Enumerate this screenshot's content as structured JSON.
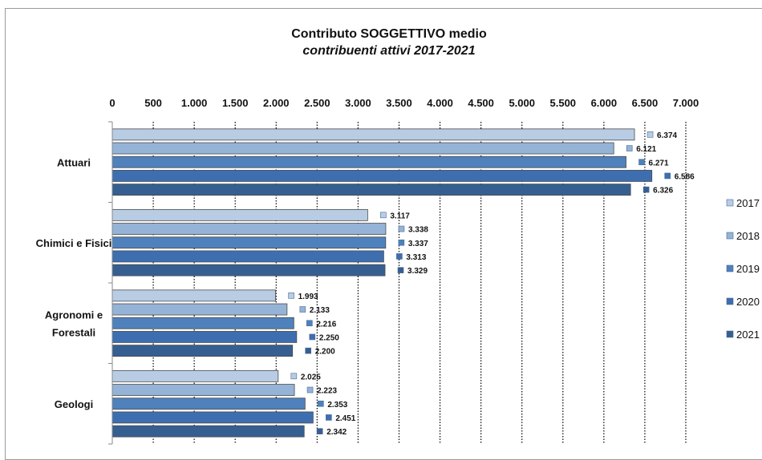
{
  "chart_data": {
    "type": "bar",
    "orientation": "horizontal",
    "title": "Contributo SOGGETTIVO medio",
    "subtitle": "contribuenti attivi 2017-2021",
    "categories": [
      "Attuari",
      "Chimici e Fisici",
      "Agronomi e\nForestali",
      "Geologi"
    ],
    "series": [
      {
        "name": "2017",
        "color": "#b8cce4",
        "values": [
          6374,
          3117,
          1993,
          2025
        ],
        "labels": [
          "6.374",
          "3.117",
          "1.993",
          "2.025"
        ]
      },
      {
        "name": "2018",
        "color": "#95b3d7",
        "values": [
          6121,
          3338,
          2133,
          2223
        ],
        "labels": [
          "6.121",
          "3.338",
          "2.133",
          "2.223"
        ]
      },
      {
        "name": "2019",
        "color": "#4f81bd",
        "values": [
          6271,
          3337,
          2216,
          2353
        ],
        "labels": [
          "6.271",
          "3.337",
          "2.216",
          "2.353"
        ]
      },
      {
        "name": "2020",
        "color": "#3d6eb0",
        "values": [
          6586,
          3313,
          2250,
          2451
        ],
        "labels": [
          "6.586",
          "3.313",
          "2.250",
          "2.451"
        ]
      },
      {
        "name": "2021",
        "color": "#365f91",
        "values": [
          6326,
          3329,
          2200,
          2342
        ],
        "labels": [
          "6.326",
          "3.329",
          "2.200",
          "2.342"
        ]
      }
    ],
    "xlim": [
      0,
      7000
    ],
    "xticks": [
      0,
      500,
      1000,
      1500,
      2000,
      2500,
      3000,
      3500,
      4000,
      4500,
      5000,
      5500,
      6000,
      6500,
      7000
    ],
    "xtick_labels": [
      "0",
      "500",
      "1.000",
      "1.500",
      "2.000",
      "2.500",
      "3.000",
      "3.500",
      "4.000",
      "4.500",
      "5.000",
      "5.500",
      "6.000",
      "6.500",
      "7.000"
    ],
    "xaxis_position": "top",
    "grid": "vertical dotted",
    "legend_position": "right"
  }
}
